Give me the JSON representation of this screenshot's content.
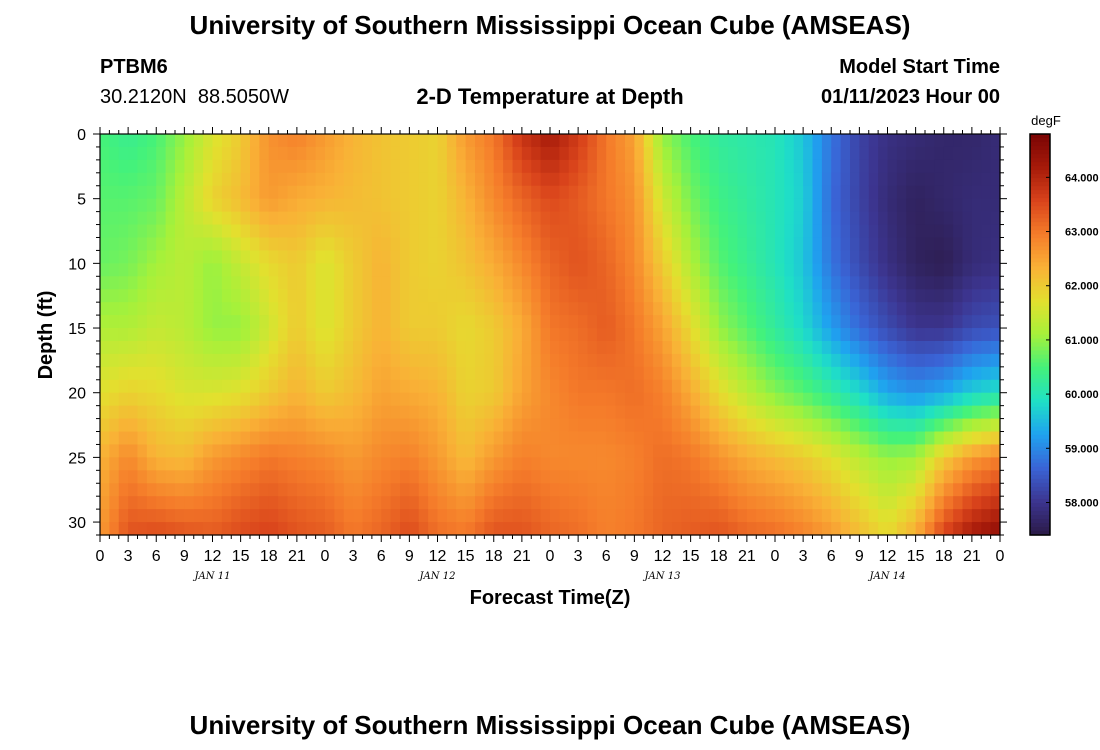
{
  "header": {
    "title": "University of Southern Mississippi Ocean Cube (AMSEAS)",
    "station_id": "PTBM6",
    "station_coords": "30.2120N  88.5050W",
    "subtitle": "2-D Temperature at Depth",
    "model_start_label": "Model Start Time",
    "model_start_value": "01/11/2023 Hour 00"
  },
  "footer": {
    "title": "University of Southern Mississippi Ocean Cube (AMSEAS)"
  },
  "colors": {
    "colormap": [
      "#2b1a47",
      "#3c3590",
      "#3a64d6",
      "#1fa2f0",
      "#1fe0c6",
      "#44f27a",
      "#a6f13a",
      "#e3e02e",
      "#f9b136",
      "#f57c2a",
      "#d9431b",
      "#a61a0a",
      "#7a0404"
    ]
  },
  "chart_data": {
    "type": "heatmap",
    "xlabel": "Forecast Time(Z)",
    "ylabel": "Depth (ft)",
    "x_unit": "hours since model start",
    "x_range": [
      0,
      96
    ],
    "y_range": [
      0,
      31
    ],
    "x_tick_labels": [
      "0",
      "3",
      "6",
      "9",
      "12",
      "15",
      "18",
      "21",
      "0",
      "3",
      "6",
      "9",
      "12",
      "15",
      "18",
      "21",
      "0",
      "3",
      "6",
      "9",
      "12",
      "15",
      "18",
      "21",
      "0",
      "3",
      "6",
      "9",
      "12",
      "15",
      "18",
      "21",
      "0"
    ],
    "y_ticks": [
      0,
      5,
      10,
      15,
      20,
      25,
      30
    ],
    "date_labels": [
      {
        "label": "JAN 11",
        "hour": 12
      },
      {
        "label": "JAN 12",
        "hour": 36
      },
      {
        "label": "JAN 13",
        "hour": 60
      },
      {
        "label": "JAN 14",
        "hour": 84
      }
    ],
    "colorbar": {
      "title": "degF",
      "min": 57.4,
      "max": 64.8,
      "ticks": [
        58.0,
        59.0,
        60.0,
        61.0,
        62.0,
        63.0,
        64.0
      ],
      "tick_labels": [
        "58.000",
        "59.000",
        "60.000",
        "61.000",
        "62.000",
        "63.000",
        "64.000"
      ]
    },
    "depth_levels_ft": [
      0,
      1,
      2,
      3,
      4,
      5,
      6,
      7,
      8,
      9,
      10,
      11,
      12,
      13,
      14,
      15,
      16,
      17,
      18,
      19,
      20,
      21,
      22,
      23,
      24,
      25,
      26,
      27,
      28,
      29,
      30,
      31
    ],
    "time_hours": [
      0,
      3,
      6,
      9,
      12,
      15,
      18,
      21,
      24,
      27,
      30,
      33,
      36,
      39,
      42,
      45,
      48,
      51,
      54,
      57,
      60,
      63,
      66,
      69,
      72,
      75,
      78,
      81,
      84,
      87,
      90,
      93,
      96
    ],
    "profiles_degF": [
      [
        60.5,
        60.6,
        60.7,
        61.2,
        61.7,
        62.3,
        62.6
      ],
      [
        60.3,
        60.6,
        60.8,
        61.2,
        61.9,
        62.8,
        63.4
      ],
      [
        60.5,
        60.7,
        61.1,
        61.4,
        61.8,
        62.3,
        63.5
      ],
      [
        61.0,
        61.3,
        61.3,
        61.3,
        61.6,
        62.2,
        63.4
      ],
      [
        61.6,
        61.9,
        61.0,
        61.0,
        61.6,
        62.6,
        63.3
      ],
      [
        62.0,
        62.2,
        61.4,
        61.0,
        61.7,
        62.8,
        63.5
      ],
      [
        62.7,
        62.6,
        61.8,
        61.5,
        62.0,
        63.0,
        63.6
      ],
      [
        62.9,
        62.4,
        62.0,
        62.0,
        62.3,
        62.9,
        63.4
      ],
      [
        62.6,
        62.3,
        61.6,
        61.6,
        62.0,
        62.8,
        63.3
      ],
      [
        62.3,
        62.2,
        62.0,
        62.0,
        62.2,
        62.6,
        63.0
      ],
      [
        62.1,
        62.1,
        62.3,
        62.3,
        62.5,
        62.8,
        63.2
      ],
      [
        62.0,
        62.0,
        62.0,
        62.0,
        62.4,
        62.9,
        63.5
      ],
      [
        61.9,
        61.9,
        61.9,
        62.0,
        62.3,
        62.6,
        63.1
      ],
      [
        62.6,
        62.3,
        62.1,
        61.8,
        61.9,
        62.2,
        63.0
      ],
      [
        63.0,
        62.8,
        62.4,
        62.0,
        62.0,
        62.6,
        63.4
      ],
      [
        63.8,
        63.2,
        62.8,
        62.4,
        62.5,
        62.9,
        63.4
      ],
      [
        64.2,
        63.5,
        63.2,
        63.0,
        62.8,
        62.8,
        63.2
      ],
      [
        63.7,
        63.3,
        63.4,
        63.1,
        63.0,
        62.8,
        63.1
      ],
      [
        63.0,
        63.0,
        63.2,
        63.3,
        63.0,
        62.8,
        62.9
      ],
      [
        62.5,
        62.7,
        62.8,
        63.0,
        63.1,
        62.9,
        63.0
      ],
      [
        61.0,
        61.5,
        62.0,
        62.5,
        62.9,
        63.1,
        63.2
      ],
      [
        60.5,
        60.8,
        61.2,
        61.8,
        62.4,
        63.0,
        63.3
      ],
      [
        60.2,
        60.4,
        60.6,
        61.0,
        61.8,
        62.7,
        63.4
      ],
      [
        60.1,
        60.2,
        60.3,
        60.6,
        61.3,
        62.4,
        63.2
      ],
      [
        60.0,
        60.0,
        60.0,
        60.2,
        60.9,
        62.2,
        63.1
      ],
      [
        59.6,
        59.7,
        59.6,
        59.8,
        60.6,
        62.0,
        62.9
      ],
      [
        58.8,
        58.7,
        58.8,
        59.2,
        60.2,
        61.7,
        62.6
      ],
      [
        58.2,
        58.2,
        58.3,
        58.7,
        59.8,
        61.3,
        62.2
      ],
      [
        57.9,
        57.8,
        57.9,
        58.3,
        59.3,
        61.0,
        61.8
      ],
      [
        57.8,
        57.6,
        57.6,
        58.0,
        59.1,
        61.1,
        62.4
      ],
      [
        57.7,
        57.7,
        57.5,
        58.0,
        59.3,
        62.0,
        63.6
      ],
      [
        57.7,
        57.8,
        57.8,
        58.3,
        59.7,
        62.6,
        64.2
      ],
      [
        57.8,
        57.8,
        57.9,
        58.4,
        59.9,
        62.9,
        64.5
      ]
    ],
    "profile_depths_ft": [
      0,
      5,
      10,
      15,
      20,
      25,
      31
    ]
  }
}
